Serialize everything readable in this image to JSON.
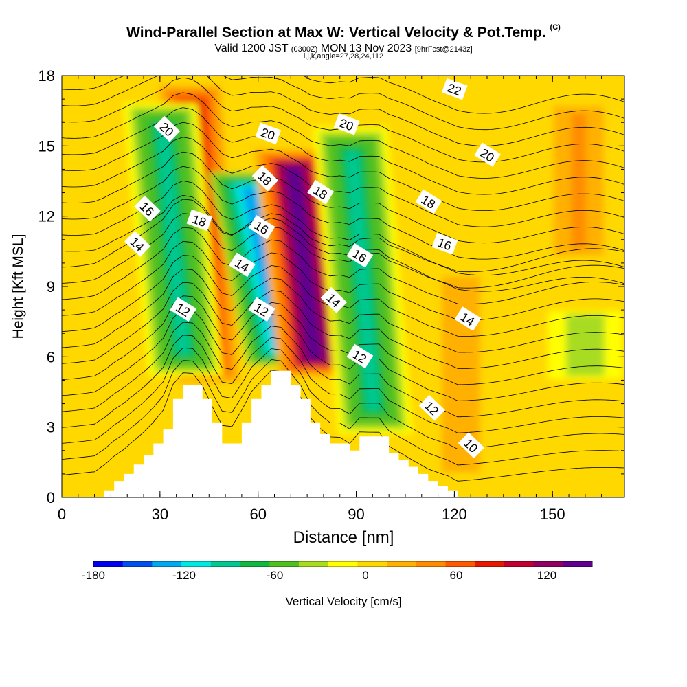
{
  "title": {
    "main": "Wind-Parallel Section at Max W: Vertical Velocity & Pot.Temp.",
    "copyright": "(C)",
    "valid_prefix": "Valid 1200 JST",
    "valid_utc": "(0300Z)",
    "valid_date": "MON 13 Nov 2023",
    "forecast": "[9hrFcst@2143z]",
    "indices": "i,j,k,angle=27,28,24,112"
  },
  "colors": {
    "terrain": "#ffffff",
    "contour": "#000000",
    "palette": [
      "#0000f0",
      "#0050f0",
      "#00a8f0",
      "#00e8e0",
      "#00c890",
      "#10b840",
      "#50c020",
      "#a8dc20",
      "#ffff00",
      "#ffd800",
      "#ffb000",
      "#ff8c00",
      "#ff5a00",
      "#e81800",
      "#c00030",
      "#900060",
      "#600090"
    ]
  },
  "chart_data": {
    "type": "heatmap",
    "xlabel": "Distance [nm]",
    "ylabel": "Height [Kft MSL]",
    "xlim": [
      0,
      172
    ],
    "ylim": [
      0,
      18
    ],
    "xticks": [
      "0",
      "30",
      "60",
      "90",
      "120",
      "150"
    ],
    "yticks": [
      "0",
      "3",
      "6",
      "9",
      "12",
      "15",
      "18"
    ],
    "grid": false,
    "colorbar": {
      "label": "Vertical Velocity [cm/s]",
      "labels": [
        "-180",
        "-120",
        "-60",
        "0",
        "60",
        "120"
      ],
      "bounds": [
        -180,
        150
      ],
      "step": 20,
      "placement": "bottom"
    },
    "terrain_profile": {
      "x": [
        0,
        10,
        13,
        16,
        19,
        22,
        25,
        28,
        31,
        34,
        37,
        40,
        43,
        46,
        49,
        52,
        55,
        58,
        61,
        64,
        67,
        70,
        73,
        76,
        79,
        82,
        85,
        88,
        91,
        94,
        97,
        100,
        103,
        106,
        109,
        112,
        115,
        118,
        121,
        172
      ],
      "height": [
        0,
        0,
        0.3,
        0.7,
        1.0,
        1.4,
        1.8,
        2.3,
        2.9,
        4.2,
        4.8,
        4.8,
        4.2,
        3.2,
        2.3,
        2.3,
        3.2,
        4.2,
        4.8,
        5.4,
        5.4,
        4.8,
        4.2,
        3.2,
        2.7,
        2.3,
        2.3,
        2.0,
        2.6,
        2.6,
        2.6,
        1.9,
        1.6,
        1.3,
        1.0,
        0.7,
        0.5,
        0.3,
        0,
        0
      ]
    },
    "velocity_features": [
      {
        "sign": "updraft",
        "x": 45,
        "z_range": [
          4.5,
          18
        ],
        "tilt": 6,
        "peak": 110
      },
      {
        "sign": "downdraft",
        "x": 38,
        "z_range": [
          5,
          17
        ],
        "tilt": 8,
        "peak": -90
      },
      {
        "sign": "downdraft",
        "x": 68,
        "z_range": [
          5.5,
          14
        ],
        "tilt": 12,
        "peak": -140
      },
      {
        "sign": "updraft",
        "x": 78,
        "z_range": [
          5,
          15
        ],
        "tilt": 8,
        "peak": 150
      },
      {
        "sign": "downdraft",
        "x": 96,
        "z_range": [
          2.5,
          16
        ],
        "tilt": 8,
        "peak": -90
      },
      {
        "sign": "updraft",
        "x": 122,
        "z_range": [
          0.5,
          10
        ],
        "tilt": 0,
        "peak": 35
      },
      {
        "sign": "updraft",
        "x": 158,
        "z_range": [
          10,
          17
        ],
        "tilt": 0,
        "peak": 45
      },
      {
        "sign": "downdraft",
        "x": 160,
        "z_range": [
          5,
          8
        ],
        "tilt": 0,
        "peak": -40
      }
    ],
    "theta_contour_labels": [
      {
        "text": "20",
        "x": 32,
        "z": 15.7
      },
      {
        "text": "20",
        "x": 63,
        "z": 15.5
      },
      {
        "text": "20",
        "x": 87,
        "z": 15.9
      },
      {
        "text": "22",
        "x": 120,
        "z": 17.4
      },
      {
        "text": "20",
        "x": 130,
        "z": 14.6
      },
      {
        "text": "16",
        "x": 26,
        "z": 12.3
      },
      {
        "text": "18",
        "x": 42,
        "z": 11.8
      },
      {
        "text": "18",
        "x": 62,
        "z": 13.6
      },
      {
        "text": "18",
        "x": 79,
        "z": 13.0
      },
      {
        "text": "18",
        "x": 112,
        "z": 12.6
      },
      {
        "text": "14",
        "x": 23,
        "z": 10.8
      },
      {
        "text": "16",
        "x": 61,
        "z": 11.5
      },
      {
        "text": "16",
        "x": 91,
        "z": 10.3
      },
      {
        "text": "16",
        "x": 117,
        "z": 10.8
      },
      {
        "text": "14",
        "x": 55,
        "z": 9.9
      },
      {
        "text": "14",
        "x": 83,
        "z": 8.4
      },
      {
        "text": "14",
        "x": 124,
        "z": 7.6
      },
      {
        "text": "12",
        "x": 37,
        "z": 8.0
      },
      {
        "text": "12",
        "x": 61,
        "z": 8.0
      },
      {
        "text": "12",
        "x": 91,
        "z": 6.0
      },
      {
        "text": "12",
        "x": 113,
        "z": 3.8
      },
      {
        "text": "10",
        "x": 125,
        "z": 2.2
      }
    ]
  }
}
